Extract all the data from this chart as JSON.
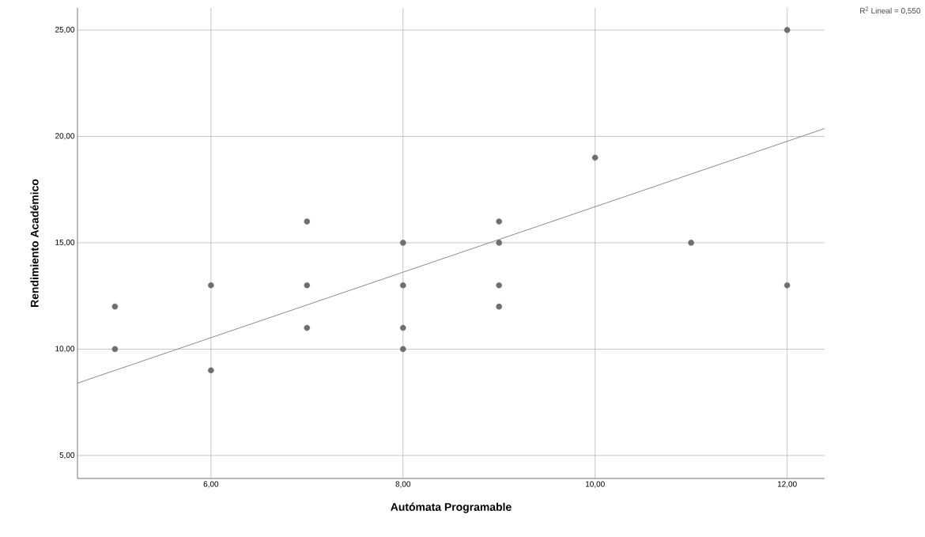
{
  "chart_data": {
    "type": "scatter",
    "xlabel": "Autómata Programable",
    "ylabel": "Rendimiento Académico",
    "annotations": [
      "R$^{2}$ Lineal = 0,550"
    ],
    "xlim": [
      4.61,
      12.39
    ],
    "ylim": [
      3.92,
      26.04
    ],
    "xticks": [
      {
        "value": 6,
        "label": "6,00"
      },
      {
        "value": 8,
        "label": "8,00"
      },
      {
        "value": 10,
        "label": "10,00"
      },
      {
        "value": 12,
        "label": "12,00"
      }
    ],
    "yticks": [
      {
        "value": 5,
        "label": "5,00"
      },
      {
        "value": 10,
        "label": "10,00"
      },
      {
        "value": 15,
        "label": "15,00"
      },
      {
        "value": 20,
        "label": "20,00"
      },
      {
        "value": 25,
        "label": "25,00"
      }
    ],
    "grid": true,
    "series": [
      {
        "marker": "circle",
        "color": "#6e6e6e",
        "x": [
          5,
          5,
          6,
          6,
          7,
          7,
          7,
          8,
          8,
          8,
          8,
          9,
          9,
          9,
          9,
          10,
          11,
          12,
          12
        ],
        "values": [
          12,
          10,
          13,
          9,
          16,
          13,
          11,
          15,
          13,
          11,
          10,
          16,
          15,
          13,
          12,
          19,
          15,
          25,
          13
        ]
      },
      {
        "type": "line",
        "marker": "none",
        "line_style": "solid",
        "color": "#8c8c8c",
        "x": [
          4.61,
          12.39
        ],
        "values": [
          8.4,
          20.37
        ]
      }
    ]
  }
}
